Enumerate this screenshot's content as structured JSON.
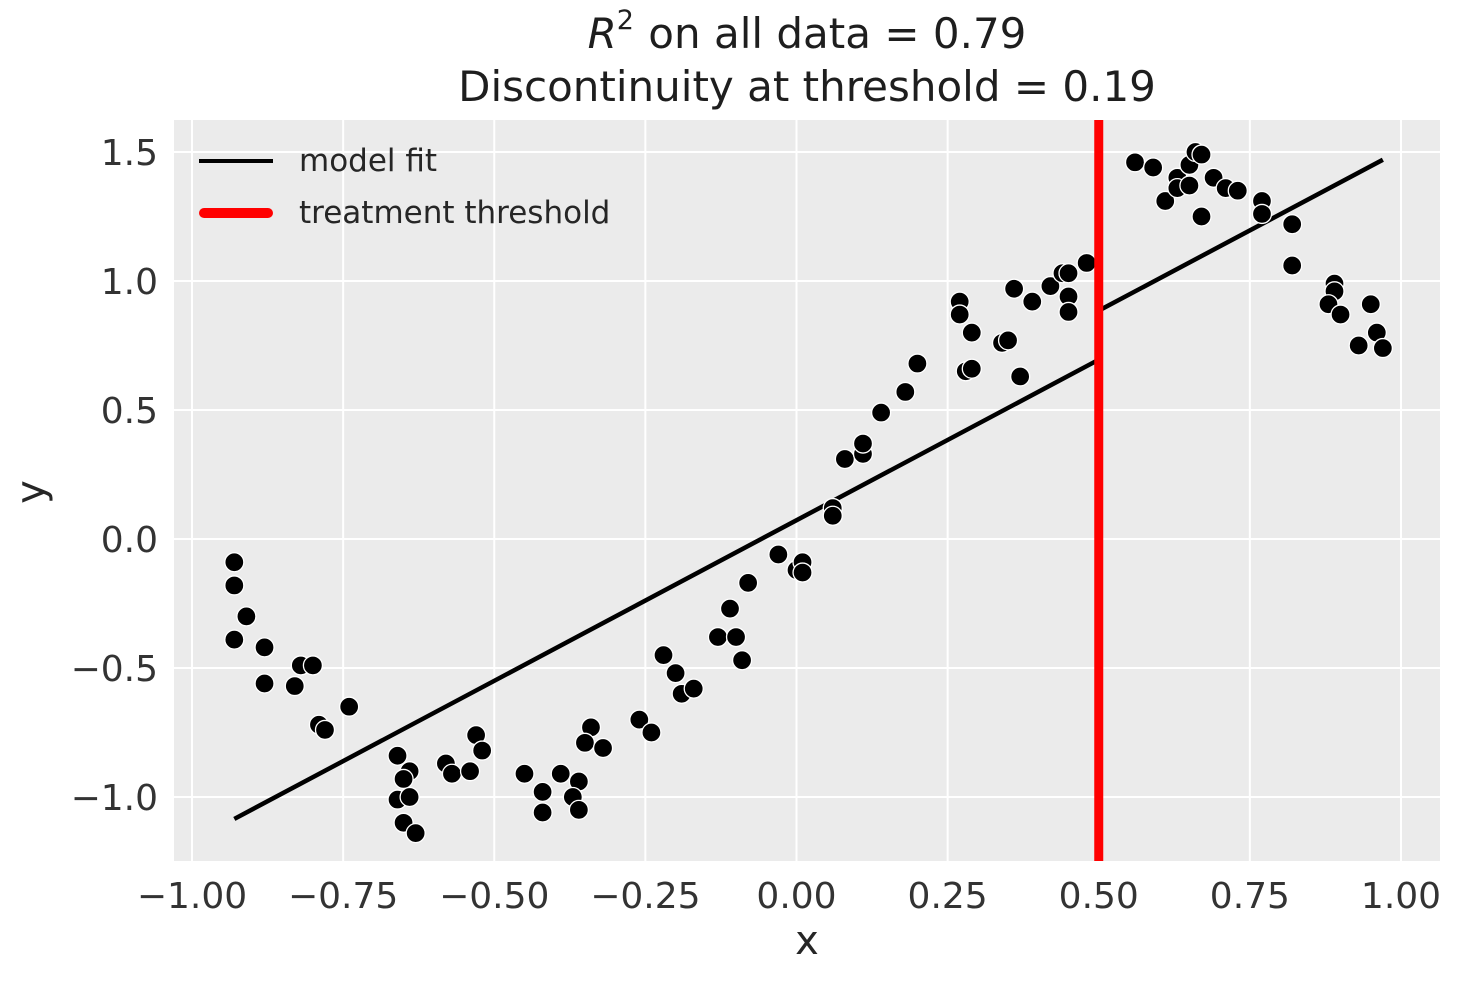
{
  "title": {
    "r_var": "R",
    "exponent": "2",
    "line1_rest": " on all data = 0.79",
    "line2": "Discontinuity at threshold = 0.19"
  },
  "legend": {
    "position": "upper left",
    "items": [
      {
        "label": "model fit",
        "color": "#000000",
        "line_weight": "thin"
      },
      {
        "label": "treatment threshold",
        "color": "#ff0000",
        "line_weight": "thick"
      }
    ]
  },
  "chart_data": {
    "type": "scatter",
    "title_line1": "R² on all data = 0.79",
    "title_line2": "Discontinuity at threshold = 0.19",
    "xlabel": "x",
    "ylabel": "y",
    "xlim": [
      -1.03,
      1.065
    ],
    "ylim": [
      -1.25,
      1.62
    ],
    "grid": true,
    "r_squared": 0.79,
    "discontinuity": 0.19,
    "threshold_x": 0.5,
    "x_ticks": [
      -1.0,
      -0.75,
      -0.5,
      -0.25,
      0.0,
      0.25,
      0.5,
      0.75,
      1.0
    ],
    "x_tick_labels": [
      "−1.00",
      "−0.75",
      "−0.50",
      "−0.25",
      "0.00",
      "0.25",
      "0.50",
      "0.75",
      "1.00"
    ],
    "y_ticks": [
      1.5,
      1.0,
      0.5,
      0.0,
      -0.5,
      -1.0
    ],
    "y_tick_labels": [
      "1.5",
      "1.0",
      "0.5",
      "0.0",
      "−0.5",
      "−1.0"
    ],
    "model_fit_polyline": [
      [
        -0.93,
        -1.085
      ],
      [
        0.5,
        0.695
      ],
      [
        0.5,
        0.885
      ],
      [
        0.97,
        1.47
      ]
    ],
    "points": [
      [
        -0.93,
        -0.09
      ],
      [
        -0.93,
        -0.18
      ],
      [
        -0.91,
        -0.3
      ],
      [
        -0.93,
        -0.39
      ],
      [
        -0.88,
        -0.42
      ],
      [
        -0.82,
        -0.49
      ],
      [
        -0.8,
        -0.49
      ],
      [
        -0.88,
        -0.56
      ],
      [
        -0.83,
        -0.57
      ],
      [
        -0.74,
        -0.65
      ],
      [
        -0.79,
        -0.72
      ],
      [
        -0.78,
        -0.74
      ],
      [
        -0.66,
        -0.84
      ],
      [
        -0.64,
        -0.9
      ],
      [
        -0.65,
        -0.93
      ],
      [
        -0.58,
        -0.87
      ],
      [
        -0.57,
        -0.91
      ],
      [
        -0.54,
        -0.9
      ],
      [
        -0.66,
        -1.01
      ],
      [
        -0.64,
        -1.0
      ],
      [
        -0.65,
        -1.1
      ],
      [
        -0.63,
        -1.14
      ],
      [
        -0.53,
        -0.76
      ],
      [
        -0.52,
        -0.82
      ],
      [
        -0.45,
        -0.91
      ],
      [
        -0.42,
        -0.98
      ],
      [
        -0.42,
        -1.06
      ],
      [
        -0.39,
        -0.91
      ],
      [
        -0.36,
        -0.94
      ],
      [
        -0.37,
        -1.0
      ],
      [
        -0.36,
        -1.05
      ],
      [
        -0.34,
        -0.73
      ],
      [
        -0.35,
        -0.79
      ],
      [
        -0.32,
        -0.81
      ],
      [
        -0.26,
        -0.7
      ],
      [
        -0.24,
        -0.75
      ],
      [
        -0.22,
        -0.45
      ],
      [
        -0.2,
        -0.52
      ],
      [
        -0.19,
        -0.6
      ],
      [
        -0.17,
        -0.58
      ],
      [
        -0.13,
        -0.38
      ],
      [
        -0.1,
        -0.38
      ],
      [
        -0.09,
        -0.47
      ],
      [
        -0.11,
        -0.27
      ],
      [
        -0.08,
        -0.17
      ],
      [
        -0.03,
        -0.06
      ],
      [
        0.0,
        -0.12
      ],
      [
        0.01,
        -0.09
      ],
      [
        0.01,
        -0.13
      ],
      [
        0.06,
        0.12
      ],
      [
        0.06,
        0.09
      ],
      [
        0.08,
        0.31
      ],
      [
        0.11,
        0.33
      ],
      [
        0.11,
        0.37
      ],
      [
        0.14,
        0.49
      ],
      [
        0.18,
        0.57
      ],
      [
        0.2,
        0.68
      ],
      [
        0.27,
        0.92
      ],
      [
        0.27,
        0.87
      ],
      [
        0.29,
        0.8
      ],
      [
        0.34,
        0.76
      ],
      [
        0.35,
        0.77
      ],
      [
        0.28,
        0.65
      ],
      [
        0.29,
        0.66
      ],
      [
        0.37,
        0.63
      ],
      [
        0.36,
        0.97
      ],
      [
        0.39,
        0.92
      ],
      [
        0.42,
        0.98
      ],
      [
        0.44,
        1.03
      ],
      [
        0.45,
        1.03
      ],
      [
        0.48,
        1.07
      ],
      [
        0.45,
        0.94
      ],
      [
        0.45,
        0.88
      ],
      [
        0.56,
        1.46
      ],
      [
        0.59,
        1.44
      ],
      [
        0.61,
        1.31
      ],
      [
        0.63,
        1.4
      ],
      [
        0.63,
        1.36
      ],
      [
        0.65,
        1.37
      ],
      [
        0.65,
        1.45
      ],
      [
        0.66,
        1.5
      ],
      [
        0.67,
        1.49
      ],
      [
        0.67,
        1.25
      ],
      [
        0.69,
        1.4
      ],
      [
        0.71,
        1.36
      ],
      [
        0.73,
        1.35
      ],
      [
        0.77,
        1.31
      ],
      [
        0.77,
        1.26
      ],
      [
        0.82,
        1.22
      ],
      [
        0.82,
        1.06
      ],
      [
        0.89,
        0.99
      ],
      [
        0.89,
        0.96
      ],
      [
        0.88,
        0.91
      ],
      [
        0.9,
        0.87
      ],
      [
        0.95,
        0.91
      ],
      [
        0.96,
        0.8
      ],
      [
        0.93,
        0.75
      ],
      [
        0.97,
        0.74
      ]
    ],
    "colors": {
      "point": "#000000",
      "point_edge": "#ffffff",
      "model_line": "#000000",
      "threshold_line": "#ff0000",
      "plot_bg": "#ebebeb",
      "grid": "#ffffff",
      "text": "#262626",
      "tick_text": "#333333"
    }
  }
}
